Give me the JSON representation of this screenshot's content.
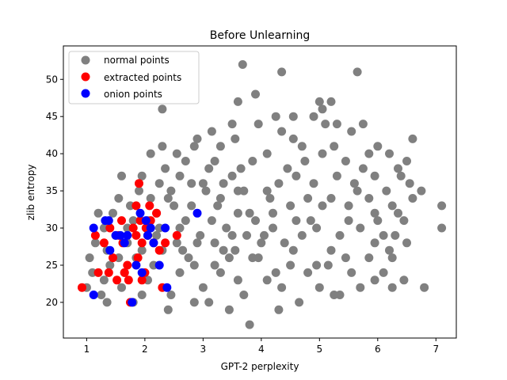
{
  "chart_data": {
    "type": "scatter",
    "title": "Before Unlearning",
    "xlabel": "GPT-2 perplexity",
    "ylabel": "zlib entropy",
    "xlim": [
      0.6,
      7.35
    ],
    "ylim": [
      15.2,
      54.5
    ],
    "xticks": [
      1,
      2,
      3,
      4,
      5,
      6,
      7
    ],
    "yticks": [
      20,
      25,
      30,
      35,
      40,
      45,
      50
    ],
    "grid": false,
    "legend": {
      "placement": "top-left"
    },
    "series": [
      {
        "name": "normal points",
        "color": "#808080",
        "points": [
          [
            3.68,
            52
          ],
          [
            4.35,
            51
          ],
          [
            5.65,
            51
          ],
          [
            3.9,
            48
          ],
          [
            2.3,
            46
          ],
          [
            3.6,
            47
          ],
          [
            5,
            47
          ],
          [
            5.2,
            47
          ],
          [
            3.5,
            44
          ],
          [
            3.95,
            44
          ],
          [
            4.25,
            45
          ],
          [
            4.55,
            45
          ],
          [
            4.9,
            45
          ],
          [
            5.05,
            46
          ],
          [
            5.3,
            44
          ],
          [
            2.9,
            42
          ],
          [
            3.15,
            43
          ],
          [
            3.55,
            42
          ],
          [
            4.35,
            43
          ],
          [
            4.55,
            42
          ],
          [
            5.1,
            44
          ],
          [
            5.55,
            43
          ],
          [
            5.75,
            44
          ],
          [
            6.6,
            42
          ],
          [
            2.1,
            40
          ],
          [
            2.3,
            41
          ],
          [
            2.55,
            40
          ],
          [
            2.85,
            41
          ],
          [
            3.3,
            41
          ],
          [
            4.7,
            41
          ],
          [
            5.25,
            41
          ],
          [
            5.85,
            40
          ],
          [
            6,
            41
          ],
          [
            6.2,
            40
          ],
          [
            6.5,
            39
          ],
          [
            1.6,
            37
          ],
          [
            1.95,
            37
          ],
          [
            2.35,
            38
          ],
          [
            2.7,
            39
          ],
          [
            3.2,
            39
          ],
          [
            4.1,
            40
          ],
          [
            5.05,
            40
          ],
          [
            5.45,
            39
          ],
          [
            5.75,
            38
          ],
          [
            6.35,
            38
          ],
          [
            1.2,
            32
          ],
          [
            1.55,
            34
          ],
          [
            1.9,
            35
          ],
          [
            2.25,
            36
          ],
          [
            2.6,
            37
          ],
          [
            3.65,
            38
          ],
          [
            4.75,
            39
          ],
          [
            5.95,
            37
          ],
          [
            6.4,
            37
          ],
          [
            6.55,
            36
          ],
          [
            7.1,
            33
          ],
          [
            6.75,
            35
          ],
          [
            1.3,
            30
          ],
          [
            1.45,
            32
          ],
          [
            1.75,
            33
          ],
          [
            2.1,
            34
          ],
          [
            2.45,
            35
          ],
          [
            3,
            36
          ],
          [
            3.5,
            37
          ],
          [
            4.45,
            38
          ],
          [
            5.3,
            37
          ],
          [
            6.15,
            35
          ],
          [
            6.6,
            34
          ],
          [
            1.15,
            28
          ],
          [
            1.5,
            29
          ],
          [
            1.8,
            31
          ],
          [
            2.2,
            32
          ],
          [
            2.8,
            33
          ],
          [
            3.3,
            34
          ],
          [
            4.1,
            35
          ],
          [
            4.9,
            36
          ],
          [
            5.65,
            35
          ],
          [
            6.25,
            33
          ],
          [
            6.45,
            31
          ],
          [
            7.1,
            30
          ],
          [
            1.05,
            26
          ],
          [
            1.35,
            27
          ],
          [
            1.7,
            28
          ],
          [
            2.05,
            29
          ],
          [
            2.6,
            30
          ],
          [
            3.15,
            31
          ],
          [
            3.8,
            32
          ],
          [
            4.5,
            33
          ],
          [
            5.2,
            34
          ],
          [
            5.95,
            32
          ],
          [
            6.3,
            29
          ],
          [
            6.5,
            28
          ],
          [
            1.1,
            24
          ],
          [
            1.4,
            25
          ],
          [
            1.85,
            26
          ],
          [
            2.3,
            27
          ],
          [
            2.9,
            28
          ],
          [
            3.5,
            29
          ],
          [
            4.2,
            30
          ],
          [
            4.85,
            31
          ],
          [
            5.5,
            31
          ],
          [
            6.1,
            29
          ],
          [
            6.25,
            26
          ],
          [
            1,
            22
          ],
          [
            1.3,
            23
          ],
          [
            1.65,
            24
          ],
          [
            2.15,
            25
          ],
          [
            2.75,
            26
          ],
          [
            3.35,
            27
          ],
          [
            4,
            28
          ],
          [
            4.7,
            29
          ],
          [
            5.35,
            29
          ],
          [
            5.95,
            28
          ],
          [
            6.1,
            24
          ],
          [
            6.45,
            23
          ],
          [
            6.8,
            22
          ],
          [
            1.25,
            21
          ],
          [
            1.6,
            22
          ],
          [
            2.05,
            23
          ],
          [
            2.6,
            24
          ],
          [
            3.2,
            25
          ],
          [
            3.85,
            26
          ],
          [
            4.55,
            27
          ],
          [
            5.2,
            27
          ],
          [
            5.85,
            26
          ],
          [
            5.95,
            23
          ],
          [
            6.25,
            22
          ],
          [
            1.35,
            20
          ],
          [
            1.95,
            21
          ],
          [
            2.45,
            21
          ],
          [
            3,
            22
          ],
          [
            3.6,
            23
          ],
          [
            4.25,
            24
          ],
          [
            4.95,
            25
          ],
          [
            5.55,
            24
          ],
          [
            5.7,
            22
          ],
          [
            1.8,
            20
          ],
          [
            2.4,
            19
          ],
          [
            3.1,
            20
          ],
          [
            3.7,
            21
          ],
          [
            4.35,
            22
          ],
          [
            5,
            22
          ],
          [
            5.35,
            21
          ],
          [
            4.3,
            19
          ],
          [
            3.8,
            17
          ],
          [
            2.85,
            20
          ],
          [
            3.45,
            19
          ],
          [
            4.65,
            20
          ],
          [
            5.25,
            21
          ],
          [
            3.25,
            33
          ],
          [
            3.6,
            32
          ],
          [
            3.9,
            31
          ],
          [
            4.2,
            32
          ],
          [
            3.4,
            30
          ],
          [
            3.75,
            29
          ],
          [
            4.05,
            29
          ],
          [
            3.55,
            27
          ],
          [
            3.95,
            26
          ],
          [
            2.7,
            31
          ],
          [
            2.95,
            29
          ],
          [
            3.2,
            28
          ],
          [
            4.4,
            28
          ],
          [
            4.6,
            31
          ],
          [
            4.8,
            34
          ],
          [
            5.05,
            33
          ],
          [
            2.5,
            33
          ],
          [
            3.7,
            35
          ],
          [
            4.3,
            36
          ],
          [
            3.35,
            36
          ],
          [
            2.25,
            30
          ],
          [
            2.55,
            28
          ],
          [
            1.95,
            27
          ],
          [
            1.7,
            30
          ],
          [
            2.85,
            25
          ],
          [
            3.3,
            24
          ],
          [
            4.1,
            23
          ],
          [
            4.8,
            24
          ],
          [
            5.45,
            26
          ],
          [
            5.7,
            30
          ],
          [
            5.5,
            33
          ],
          [
            5.85,
            34
          ],
          [
            4.95,
            30
          ],
          [
            3.05,
            35
          ],
          [
            2.4,
            34
          ],
          [
            2.05,
            31
          ],
          [
            1.55,
            26
          ],
          [
            3.1,
            38
          ],
          [
            3.85,
            39
          ],
          [
            4.6,
            37
          ],
          [
            2.2,
            29
          ],
          [
            2.65,
            27
          ],
          [
            3.45,
            26
          ],
          [
            4.5,
            25
          ],
          [
            5.15,
            25
          ],
          [
            3.6,
            35
          ],
          [
            4.15,
            34
          ],
          [
            2.8,
            36
          ],
          [
            5.6,
            36
          ],
          [
            6,
            31
          ],
          [
            6.2,
            27
          ],
          [
            6.35,
            32
          ]
        ]
      },
      {
        "name": "extracted points",
        "color": "#ff0000",
        "points": [
          [
            0.92,
            22
          ],
          [
            1.2,
            24
          ],
          [
            1.15,
            29
          ],
          [
            1.3,
            28
          ],
          [
            1.4,
            30
          ],
          [
            1.45,
            26
          ],
          [
            1.52,
            23
          ],
          [
            1.38,
            24
          ],
          [
            1.55,
            29
          ],
          [
            1.6,
            31
          ],
          [
            1.62,
            28
          ],
          [
            1.65,
            24
          ],
          [
            1.7,
            25
          ],
          [
            1.75,
            20
          ],
          [
            1.72,
            23
          ],
          [
            1.8,
            30
          ],
          [
            1.85,
            29
          ],
          [
            1.9,
            36
          ],
          [
            1.88,
            26
          ],
          [
            1.92,
            31
          ],
          [
            1.95,
            28
          ],
          [
            2,
            24
          ],
          [
            2.02,
            30
          ],
          [
            2.05,
            29
          ],
          [
            2.08,
            33
          ],
          [
            2.1,
            31
          ],
          [
            2.15,
            28
          ],
          [
            2.2,
            32
          ],
          [
            2.25,
            27
          ],
          [
            2.3,
            22
          ],
          [
            2.35,
            28
          ],
          [
            2.55,
            29
          ],
          [
            1.85,
            33
          ],
          [
            1.95,
            23
          ]
        ]
      },
      {
        "name": "onion points",
        "color": "#0000ff",
        "points": [
          [
            1.12,
            21
          ],
          [
            1.12,
            30
          ],
          [
            1.32,
            31
          ],
          [
            1.4,
            27
          ],
          [
            1.5,
            29
          ],
          [
            1.58,
            29
          ],
          [
            1.65,
            28
          ],
          [
            1.7,
            29
          ],
          [
            1.78,
            20
          ],
          [
            1.85,
            25
          ],
          [
            1.92,
            32
          ],
          [
            1.95,
            24
          ],
          [
            2.02,
            31
          ],
          [
            2.05,
            29
          ],
          [
            2.1,
            30
          ],
          [
            2.15,
            28
          ],
          [
            2.25,
            25
          ],
          [
            2.35,
            30
          ],
          [
            2.38,
            22
          ],
          [
            2.9,
            32
          ],
          [
            1.38,
            31
          ]
        ]
      }
    ]
  }
}
